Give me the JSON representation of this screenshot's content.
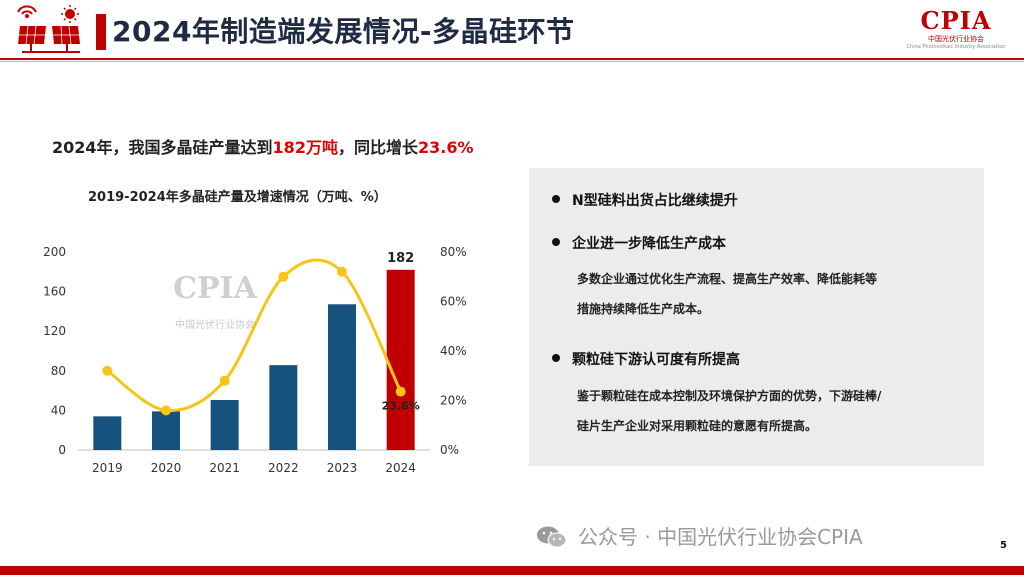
{
  "header": {
    "title": "2024年制造端发展情况-多晶硅环节",
    "logo_right": {
      "brand": "CPIA",
      "cn": "中国光伏行业协会",
      "en": "China Photovoltaic Industry Association"
    }
  },
  "headline": {
    "prefix": "2024年，我国多晶硅产量达到",
    "highlight1": "182万吨",
    "middle": "，同比增长",
    "highlight2": "23.6%"
  },
  "colors": {
    "accent": "#c00000",
    "bar": "#17527f",
    "bar_highlight": "#c00000",
    "line": "#f5c518",
    "panel": "#ececec"
  },
  "chart_data": {
    "type": "bar",
    "title": "2019-2024年多晶硅产量及增速情况（万吨、%）",
    "categories": [
      "2019",
      "2020",
      "2021",
      "2022",
      "2023",
      "2024"
    ],
    "series": [
      {
        "type": "bar",
        "values": [
          34,
          39,
          50.5,
          85.7,
          147.2,
          182
        ],
        "highlight_index": 5
      },
      {
        "type": "line",
        "axis": "right",
        "values": [
          32,
          16,
          28,
          70,
          72,
          23.6
        ]
      }
    ],
    "ylim": [
      0,
      200
    ],
    "yticks": [
      0,
      40,
      80,
      120,
      160,
      200
    ],
    "y2lim": [
      0,
      80
    ],
    "y2ticks": [
      0,
      20,
      40,
      60,
      80
    ],
    "y2tick_labels": [
      "0%",
      "20%",
      "40%",
      "60%",
      "80%"
    ],
    "data_labels": [
      {
        "series": 0,
        "index": 5,
        "text": "182"
      },
      {
        "series": 1,
        "index": 5,
        "text": "23.6%"
      }
    ],
    "watermark": {
      "brand": "CPIA",
      "cn": "中国光伏行业协会"
    }
  },
  "panel": {
    "bullets": [
      {
        "title": "N型硅料出货占比继续提升",
        "detail": []
      },
      {
        "title": "企业进一步降低生产成本",
        "detail": [
          "多数企业通过优化生产流程、提高生产效率、降低能耗等",
          "措施持续降低生产成本。"
        ]
      },
      {
        "title": "颗粒硅下游认可度有所提高",
        "detail": [
          "鉴于颗粒硅在成本控制及环境保护方面的优势，下游硅棒/",
          "硅片生产企业对采用颗粒硅的意愿有所提高。"
        ]
      }
    ]
  },
  "footer": {
    "watermark": "公众号 · 中国光伏行业协会CPIA",
    "page": "5"
  }
}
